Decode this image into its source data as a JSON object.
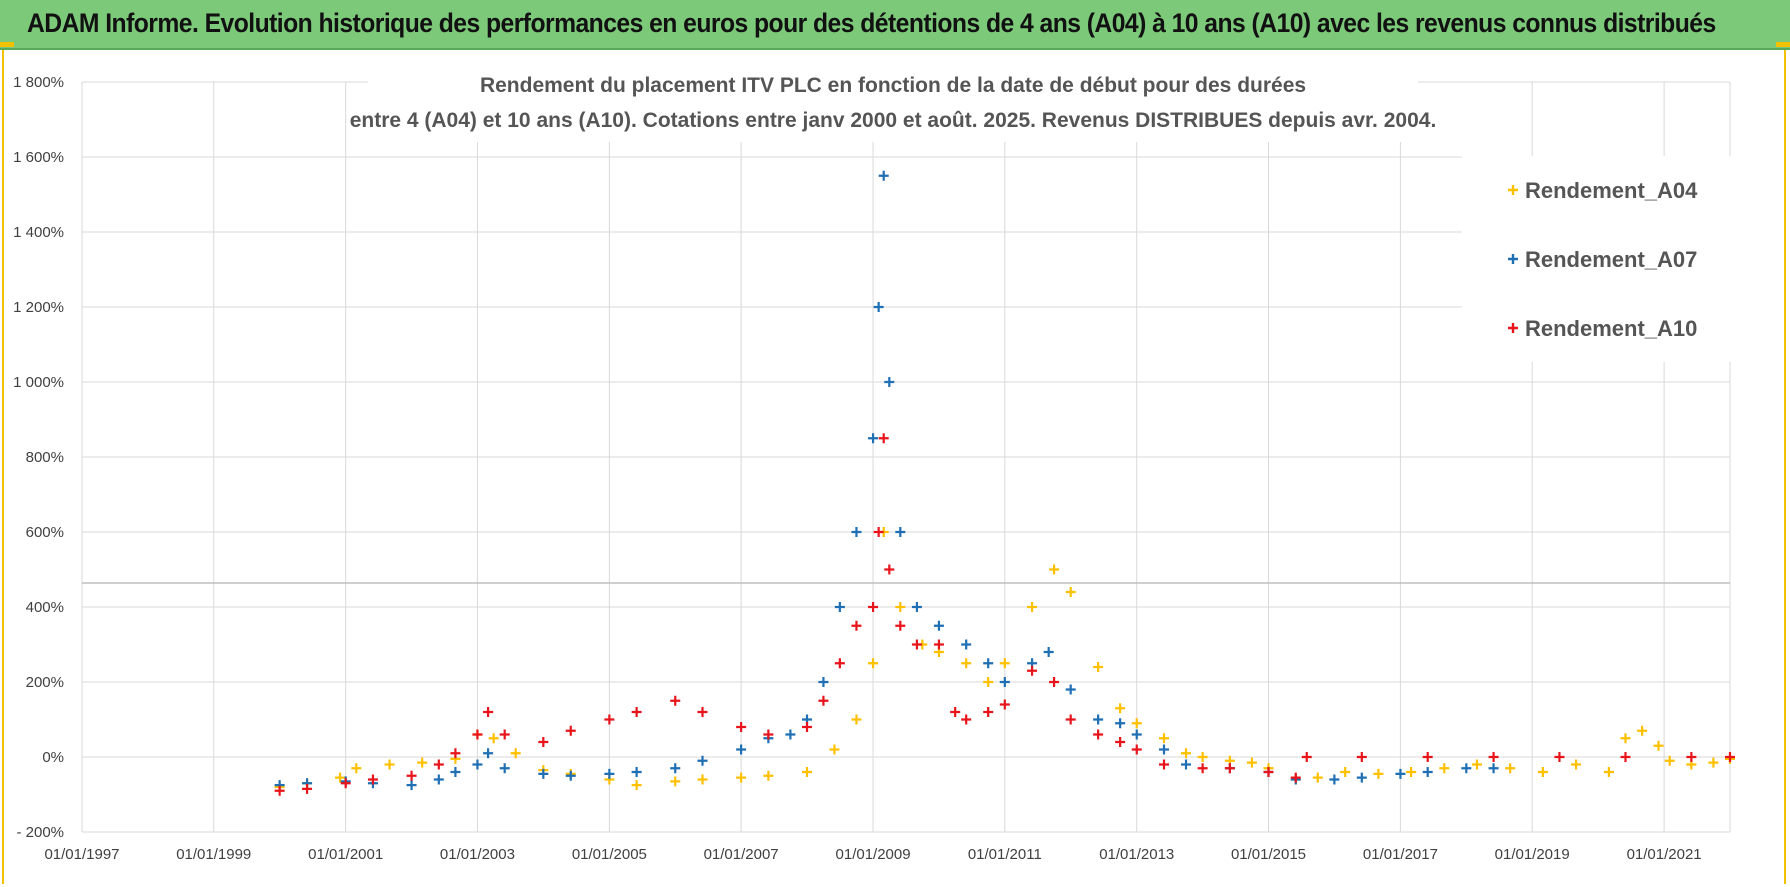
{
  "banner": {
    "title": "ADAM Informe. Evolution historique des performances en euros pour des détentions de 4 ans (A04) à 10 ans (A10) avec les revenus connus distribués"
  },
  "colors": {
    "banner_bg": "#7dc97a",
    "accent": "#f2c200",
    "A04": "#ffc000",
    "A07": "#1f6fb4",
    "A10": "#e8141b",
    "grid": "#d9d9d9"
  },
  "chart_data": {
    "type": "scatter",
    "title_lines": [
      "Rendement du placement ITV PLC en fonction de la date de début pour des durées",
      "entre 4 (A04) et 10 ans (A10).  Cotations entre janv 2000 et août. 2025. Revenus DISTRIBUES depuis avr. 2004."
    ],
    "marker": "+",
    "grid": true,
    "legend_position": "top-right",
    "xlabel": "",
    "ylabel": "",
    "x_axis": {
      "type": "date",
      "range": [
        "1997-01-01",
        "2022-01-01"
      ],
      "tick_labels": [
        "01/01/1997",
        "01/01/1999",
        "01/01/2001",
        "01/01/2003",
        "01/01/2005",
        "01/01/2007",
        "01/01/2009",
        "01/01/2011",
        "01/01/2013",
        "01/01/2015",
        "01/01/2017",
        "01/01/2019",
        "01/01/2021"
      ]
    },
    "y_axis": {
      "unit": "%",
      "range": [
        -200,
        1800
      ],
      "tick_values": [
        -200,
        0,
        200,
        400,
        600,
        800,
        1000,
        1200,
        1400,
        1600,
        1800
      ],
      "tick_labels": [
        "- 200%",
        "0%",
        "200%",
        "400%",
        "600%",
        "800%",
        "1 000%",
        "1 200%",
        "1 400%",
        "1 600%",
        "1 800%"
      ]
    },
    "series": [
      {
        "name": "Rendement_A04",
        "color": "#ffc000",
        "points": [
          [
            "2000-01-01",
            -80
          ],
          [
            "2000-06-01",
            -70
          ],
          [
            "2000-12-01",
            -55
          ],
          [
            "2001-03-01",
            -30
          ],
          [
            "2001-09-01",
            -20
          ],
          [
            "2002-03-01",
            -15
          ],
          [
            "2002-09-01",
            -5
          ],
          [
            "2003-01-01",
            60
          ],
          [
            "2003-04-01",
            50
          ],
          [
            "2003-08-01",
            10
          ],
          [
            "2004-01-01",
            -35
          ],
          [
            "2004-06-01",
            -45
          ],
          [
            "2005-01-01",
            -60
          ],
          [
            "2005-06-01",
            -75
          ],
          [
            "2006-01-01",
            -65
          ],
          [
            "2006-06-01",
            -60
          ],
          [
            "2007-01-01",
            -55
          ],
          [
            "2007-06-01",
            -50
          ],
          [
            "2008-01-01",
            -40
          ],
          [
            "2008-06-01",
            20
          ],
          [
            "2008-10-01",
            100
          ],
          [
            "2009-01-01",
            250
          ],
          [
            "2009-03-01",
            600
          ],
          [
            "2009-06-01",
            400
          ],
          [
            "2009-10-01",
            300
          ],
          [
            "2010-01-01",
            280
          ],
          [
            "2010-06-01",
            250
          ],
          [
            "2010-10-01",
            200
          ],
          [
            "2011-01-01",
            250
          ],
          [
            "2011-06-01",
            400
          ],
          [
            "2011-10-01",
            500
          ],
          [
            "2012-01-01",
            440
          ],
          [
            "2012-06-01",
            240
          ],
          [
            "2012-10-01",
            130
          ],
          [
            "2013-01-01",
            90
          ],
          [
            "2013-06-01",
            50
          ],
          [
            "2013-10-01",
            10
          ],
          [
            "2014-01-01",
            0
          ],
          [
            "2014-06-01",
            -10
          ],
          [
            "2014-10-01",
            -15
          ],
          [
            "2015-01-01",
            -30
          ],
          [
            "2015-06-01",
            -60
          ],
          [
            "2015-10-01",
            -55
          ],
          [
            "2016-03-01",
            -40
          ],
          [
            "2016-09-01",
            -45
          ],
          [
            "2017-03-01",
            -40
          ],
          [
            "2017-09-01",
            -30
          ],
          [
            "2018-03-01",
            -20
          ],
          [
            "2018-09-01",
            -30
          ],
          [
            "2019-03-01",
            -40
          ],
          [
            "2019-09-01",
            -20
          ],
          [
            "2020-03-01",
            -40
          ],
          [
            "2020-06-01",
            50
          ],
          [
            "2020-09-01",
            70
          ],
          [
            "2020-12-01",
            30
          ],
          [
            "2021-02-01",
            -10
          ],
          [
            "2021-06-01",
            -20
          ],
          [
            "2021-10-01",
            -15
          ],
          [
            "2022-01-01",
            -5
          ]
        ]
      },
      {
        "name": "Rendement_A07",
        "color": "#1f6fb4",
        "points": [
          [
            "2000-01-01",
            -75
          ],
          [
            "2000-06-01",
            -70
          ],
          [
            "2001-01-01",
            -65
          ],
          [
            "2001-06-01",
            -70
          ],
          [
            "2002-01-01",
            -75
          ],
          [
            "2002-06-01",
            -60
          ],
          [
            "2002-09-01",
            -40
          ],
          [
            "2003-01-01",
            -20
          ],
          [
            "2003-03-01",
            10
          ],
          [
            "2003-06-01",
            -30
          ],
          [
            "2004-01-01",
            -45
          ],
          [
            "2004-06-01",
            -50
          ],
          [
            "2005-01-01",
            -45
          ],
          [
            "2005-06-01",
            -40
          ],
          [
            "2006-01-01",
            -30
          ],
          [
            "2006-06-01",
            -10
          ],
          [
            "2007-01-01",
            20
          ],
          [
            "2007-06-01",
            50
          ],
          [
            "2007-10-01",
            60
          ],
          [
            "2008-01-01",
            100
          ],
          [
            "2008-04-01",
            200
          ],
          [
            "2008-07-01",
            400
          ],
          [
            "2008-10-01",
            600
          ],
          [
            "2009-01-01",
            850
          ],
          [
            "2009-02-01",
            1200
          ],
          [
            "2009-03-01",
            1550
          ],
          [
            "2009-04-01",
            1000
          ],
          [
            "2009-06-01",
            600
          ],
          [
            "2009-09-01",
            400
          ],
          [
            "2010-01-01",
            350
          ],
          [
            "2010-06-01",
            300
          ],
          [
            "2010-10-01",
            250
          ],
          [
            "2011-01-01",
            200
          ],
          [
            "2011-06-01",
            250
          ],
          [
            "2011-09-01",
            280
          ],
          [
            "2012-01-01",
            180
          ],
          [
            "2012-06-01",
            100
          ],
          [
            "2012-10-01",
            90
          ],
          [
            "2013-01-01",
            60
          ],
          [
            "2013-06-01",
            20
          ],
          [
            "2013-10-01",
            -20
          ],
          [
            "2014-06-01",
            -30
          ],
          [
            "2015-01-01",
            -40
          ],
          [
            "2015-06-01",
            -60
          ],
          [
            "2016-01-01",
            -60
          ],
          [
            "2016-06-01",
            -55
          ],
          [
            "2017-01-01",
            -45
          ],
          [
            "2017-06-01",
            -40
          ],
          [
            "2018-01-01",
            -30
          ],
          [
            "2018-06-01",
            -30
          ]
        ]
      },
      {
        "name": "Rendement_A10",
        "color": "#e8141b",
        "points": [
          [
            "2000-01-01",
            -90
          ],
          [
            "2000-06-01",
            -85
          ],
          [
            "2001-01-01",
            -70
          ],
          [
            "2001-06-01",
            -60
          ],
          [
            "2002-01-01",
            -50
          ],
          [
            "2002-06-01",
            -20
          ],
          [
            "2002-09-01",
            10
          ],
          [
            "2003-01-01",
            60
          ],
          [
            "2003-03-01",
            120
          ],
          [
            "2003-06-01",
            60
          ],
          [
            "2004-01-01",
            40
          ],
          [
            "2004-06-01",
            70
          ],
          [
            "2005-01-01",
            100
          ],
          [
            "2005-06-01",
            120
          ],
          [
            "2006-01-01",
            150
          ],
          [
            "2006-06-01",
            120
          ],
          [
            "2007-01-01",
            80
          ],
          [
            "2007-06-01",
            60
          ],
          [
            "2008-01-01",
            80
          ],
          [
            "2008-04-01",
            150
          ],
          [
            "2008-07-01",
            250
          ],
          [
            "2008-10-01",
            350
          ],
          [
            "2009-01-01",
            400
          ],
          [
            "2009-02-01",
            600
          ],
          [
            "2009-03-01",
            850
          ],
          [
            "2009-04-01",
            500
          ],
          [
            "2009-06-01",
            350
          ],
          [
            "2009-09-01",
            300
          ],
          [
            "2010-01-01",
            300
          ],
          [
            "2010-04-01",
            120
          ],
          [
            "2010-06-01",
            100
          ],
          [
            "2010-10-01",
            120
          ],
          [
            "2011-01-01",
            140
          ],
          [
            "2011-06-01",
            230
          ],
          [
            "2011-10-01",
            200
          ],
          [
            "2012-01-01",
            100
          ],
          [
            "2012-06-01",
            60
          ],
          [
            "2012-10-01",
            40
          ],
          [
            "2013-01-01",
            20
          ],
          [
            "2013-06-01",
            -20
          ],
          [
            "2014-01-01",
            -30
          ],
          [
            "2014-06-01",
            -30
          ],
          [
            "2015-01-01",
            -40
          ],
          [
            "2015-06-01",
            -55
          ],
          [
            "2015-08-01",
            0
          ],
          [
            "2016-06-01",
            0
          ],
          [
            "2017-06-01",
            0
          ],
          [
            "2018-06-01",
            0
          ],
          [
            "2019-06-01",
            0
          ],
          [
            "2020-06-01",
            0
          ],
          [
            "2021-06-01",
            0
          ],
          [
            "2022-01-01",
            0
          ]
        ]
      }
    ]
  }
}
